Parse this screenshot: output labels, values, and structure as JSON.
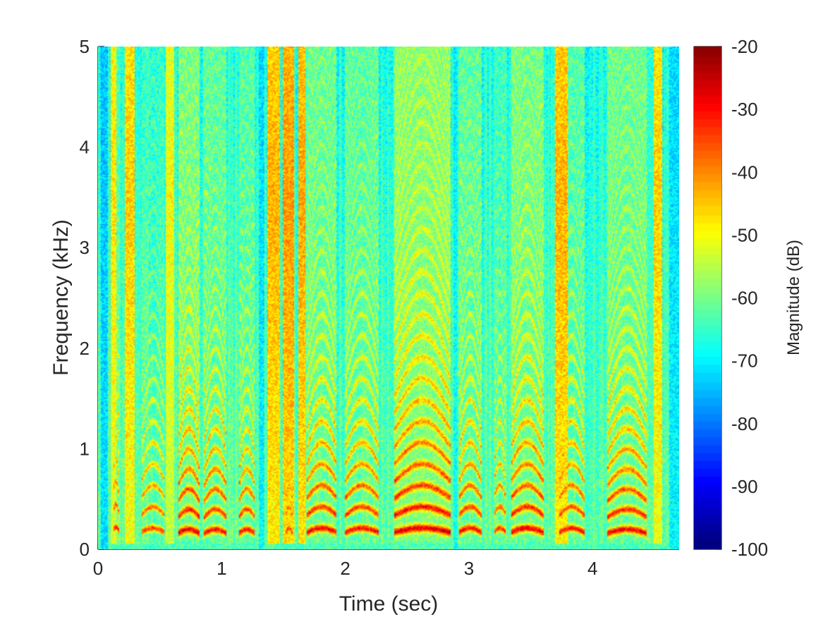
{
  "chart_data": {
    "type": "heatmap",
    "title": "",
    "xlabel": "Time (sec)",
    "ylabel": "Frequency (kHz)",
    "xlim": [
      0,
      4.7
    ],
    "ylim": [
      0,
      5
    ],
    "xticks": [
      0,
      1,
      2,
      3,
      4
    ],
    "yticks": [
      0,
      1,
      2,
      3,
      4,
      5
    ],
    "colormap": "jet",
    "colorbar": {
      "label": "Magnitude (dB)",
      "clim": [
        -100,
        -20
      ],
      "ticks": [
        -20,
        -30,
        -40,
        -50,
        -60,
        -70,
        -80,
        -90,
        -100
      ]
    },
    "background_level_db": -62,
    "voiced_segments": [
      {
        "t0": 0.12,
        "t1": 0.17,
        "f0_khz": 0.18,
        "level_db": -32
      },
      {
        "t0": 0.35,
        "t1": 0.54,
        "f0_khz": 0.17,
        "level_db": -34
      },
      {
        "t0": 0.65,
        "t1": 0.82,
        "f0_khz": 0.16,
        "level_db": -28
      },
      {
        "t0": 0.86,
        "t1": 1.04,
        "f0_khz": 0.16,
        "level_db": -30
      },
      {
        "t0": 1.14,
        "t1": 1.27,
        "f0_khz": 0.16,
        "level_db": -31
      },
      {
        "t0": 1.52,
        "t1": 1.57,
        "f0_khz": 0.17,
        "level_db": -34
      },
      {
        "t0": 1.69,
        "t1": 1.93,
        "f0_khz": 0.17,
        "level_db": -29
      },
      {
        "t0": 2.0,
        "t1": 2.27,
        "f0_khz": 0.17,
        "level_db": -30
      },
      {
        "t0": 2.4,
        "t1": 2.85,
        "f0_khz": 0.17,
        "level_db": -26
      },
      {
        "t0": 2.92,
        "t1": 3.1,
        "f0_khz": 0.17,
        "level_db": -30
      },
      {
        "t0": 3.2,
        "t1": 3.3,
        "f0_khz": 0.17,
        "level_db": -33
      },
      {
        "t0": 3.34,
        "t1": 3.6,
        "f0_khz": 0.17,
        "level_db": -28
      },
      {
        "t0": 3.73,
        "t1": 3.93,
        "f0_khz": 0.17,
        "level_db": -31
      },
      {
        "t0": 4.12,
        "t1": 4.44,
        "f0_khz": 0.16,
        "level_db": -29
      }
    ],
    "noise_bursts": [
      {
        "t0": 0.1,
        "t1": 0.15,
        "level_db": -48
      },
      {
        "t0": 0.22,
        "t1": 0.3,
        "level_db": -46
      },
      {
        "t0": 0.55,
        "t1": 0.62,
        "level_db": -50
      },
      {
        "t0": 1.37,
        "t1": 1.47,
        "level_db": -44
      },
      {
        "t0": 1.5,
        "t1": 1.58,
        "level_db": -42
      },
      {
        "t0": 1.62,
        "t1": 1.68,
        "level_db": -43
      },
      {
        "t0": 3.7,
        "t1": 3.8,
        "level_db": -44
      },
      {
        "t0": 4.5,
        "t1": 4.56,
        "level_db": -46
      }
    ],
    "quiet_gaps": [
      {
        "t0": 0.02,
        "t1": 0.08,
        "level_db": -72
      },
      {
        "t0": 1.3,
        "t1": 1.35,
        "level_db": -70
      },
      {
        "t0": 2.88,
        "t1": 2.91,
        "level_db": -68
      },
      {
        "t0": 4.62,
        "t1": 4.7,
        "level_db": -70
      }
    ]
  }
}
